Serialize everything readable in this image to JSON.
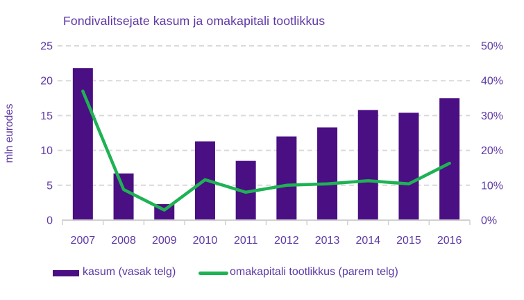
{
  "title": "Fondivalitsejate kasum ja omakapitali tootlikkus",
  "left_axis": {
    "title": "mln eurodes",
    "tick_labels": [
      "0",
      "5",
      "10",
      "15",
      "20",
      "25"
    ]
  },
  "right_axis": {
    "tick_labels": [
      "0%",
      "10%",
      "20%",
      "30%",
      "40%",
      "50%"
    ]
  },
  "legend": {
    "bar_label": "kasum (vasak telg)",
    "line_label": "omakapitali tootlikkus (parem telg)"
  },
  "colors": {
    "bar": "#4a0f82",
    "line": "#1eb254",
    "text": "#5d39a5",
    "title": "#5b35a3",
    "gridline": "#d9d9d9",
    "axis": "#d0d0d0"
  },
  "chart_data": {
    "type": "combo",
    "title": "Fondivalitsejate kasum ja omakapitali tootlikkus",
    "categories": [
      "2007",
      "2008",
      "2009",
      "2010",
      "2011",
      "2012",
      "2013",
      "2014",
      "2015",
      "2016"
    ],
    "series": [
      {
        "name": "kasum (vasak telg)",
        "type": "bar",
        "axis": "left",
        "values": [
          21.8,
          6.7,
          2.3,
          11.3,
          8.5,
          12.0,
          13.3,
          15.8,
          15.4,
          17.5
        ]
      },
      {
        "name": "omakapitali tootlikkus (parem telg)",
        "type": "line",
        "axis": "right",
        "values": [
          37.0,
          8.8,
          2.9,
          11.6,
          8.0,
          10.0,
          10.4,
          11.3,
          10.4,
          16.3
        ]
      }
    ],
    "ylabel_left": "mln eurodes",
    "ylabel_right": "",
    "y_left": {
      "min": 0,
      "max": 25,
      "ticks": [
        0,
        5,
        10,
        15,
        20,
        25
      ]
    },
    "y_right": {
      "min": 0,
      "max": 50,
      "ticks": [
        0,
        10,
        20,
        30,
        40,
        50
      ]
    },
    "grid": "horizontal-dashed",
    "legend_position": "bottom"
  }
}
